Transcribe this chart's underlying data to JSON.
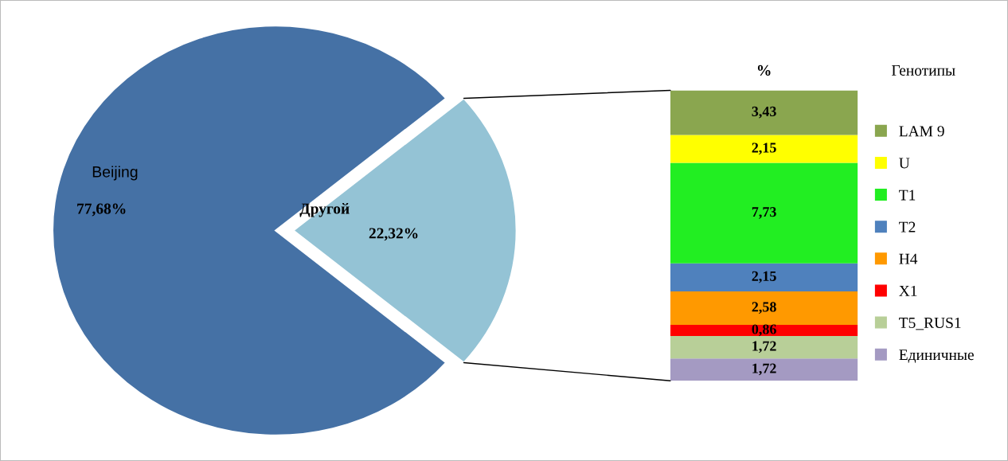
{
  "chart_data": [
    {
      "type": "pie",
      "categories": [
        "Beijing",
        "Другой"
      ],
      "values": [
        77.68,
        22.32
      ],
      "colors": [
        "#4571a5",
        "#94c3d5"
      ],
      "value_labels": [
        "77,68%",
        "22,32%"
      ]
    },
    {
      "type": "bar",
      "title": "%",
      "legend_title": "Генотипы",
      "categories": [
        null
      ],
      "stacked": true,
      "legend": "right",
      "series": [
        {
          "name": "Единичные",
          "color": "#a49ac2",
          "values": [
            1.72
          ],
          "value_labels": [
            "1,72"
          ]
        },
        {
          "name": "T5_RUS1",
          "color": "#b8cf98",
          "values": [
            1.72
          ],
          "value_labels": [
            "1,72"
          ]
        },
        {
          "name": "X1",
          "color": "#ff0000",
          "values": [
            0.86
          ],
          "value_labels": [
            "0,86"
          ]
        },
        {
          "name": "H4",
          "color": "#ff9900",
          "values": [
            2.58
          ],
          "value_labels": [
            "2,58"
          ]
        },
        {
          "name": "T2",
          "color": "#4f81bd",
          "values": [
            2.15
          ],
          "value_labels": [
            "2,15"
          ]
        },
        {
          "name": "T1",
          "color": "#22ee22",
          "values": [
            7.73
          ],
          "value_labels": [
            "7,73"
          ]
        },
        {
          "name": "U",
          "color": "#ffff00",
          "values": [
            2.15
          ],
          "value_labels": [
            "2,15"
          ]
        },
        {
          "name": "LAM 9",
          "color": "#8aa64f",
          "values": [
            3.43
          ],
          "value_labels": [
            "3,43"
          ]
        }
      ]
    }
  ]
}
